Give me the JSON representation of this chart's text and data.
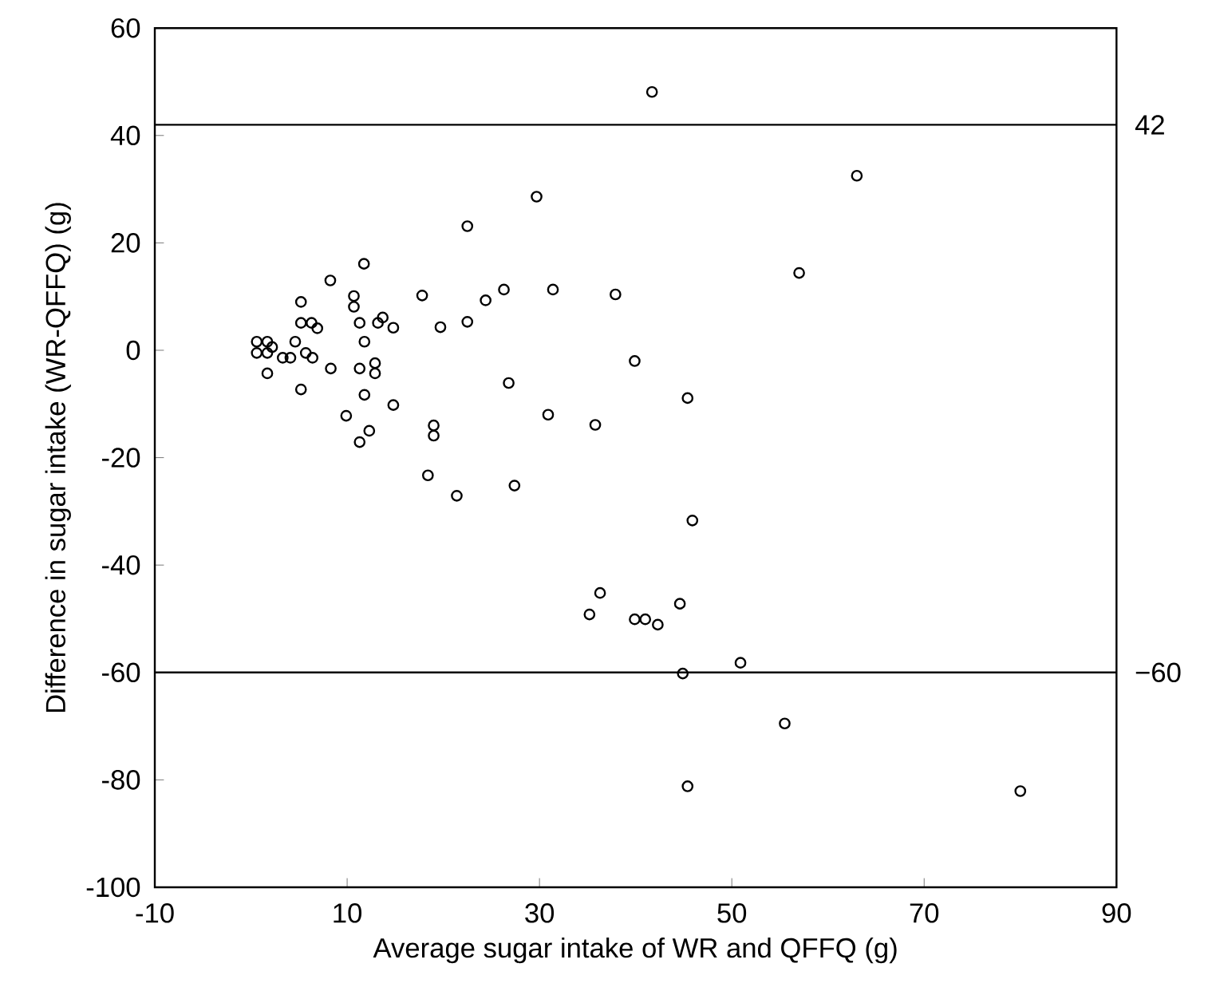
{
  "chart_data": {
    "type": "scatter",
    "xlabel": "Average sugar intake of WR and QFFQ (g)",
    "ylabel": "Difference in sugar intake (WR-QFFQ) (g)",
    "xlim": [
      -10,
      90
    ],
    "ylim": [
      -100,
      60
    ],
    "xticks": [
      -10,
      10,
      30,
      50,
      70,
      90
    ],
    "yticks": [
      -100,
      -80,
      -60,
      -40,
      -20,
      0,
      20,
      40,
      60
    ],
    "grid": false,
    "marker": "circle",
    "ref_lines": [
      {
        "axis": "y",
        "value": 42,
        "label": "42",
        "color": "#000000"
      },
      {
        "axis": "y",
        "value": -60,
        "label": "−60",
        "color": "#000000"
      }
    ],
    "series": [
      {
        "color": "#000000",
        "x": [
          22.5,
          11.75,
          8.25,
          5.2,
          10.7,
          10.7,
          17.8,
          24.4,
          26.3,
          29.7,
          31.4,
          37.9,
          41.7,
          63.0,
          57.0,
          39.9,
          26.8,
          45.4,
          30.9,
          35.8,
          27.4,
          45.9,
          5.2,
          6.3,
          6.9,
          0.6,
          1.7,
          0.6,
          1.7,
          2.2,
          3.3,
          4.1,
          4.6,
          5.7,
          6.4,
          1.7,
          5.2,
          8.3,
          11.3,
          11.8,
          13.2,
          13.7,
          14.8,
          11.3,
          12.9,
          12.9,
          11.8,
          14.8,
          9.9,
          12.3,
          11.3,
          19.0,
          19.0,
          19.7,
          22.5,
          18.4,
          21.4,
          36.3,
          35.2,
          39.9,
          41.0,
          42.3,
          44.6,
          44.9,
          50.9,
          55.5,
          45.4,
          80.0
        ],
        "values": [
          23.1,
          16.1,
          13.0,
          9.0,
          10.1,
          8.1,
          10.2,
          9.3,
          11.3,
          28.6,
          11.3,
          10.4,
          48.1,
          32.5,
          14.4,
          -2.0,
          -6.1,
          -8.9,
          -12.0,
          -13.9,
          -25.2,
          -31.7,
          5.1,
          5.1,
          4.1,
          1.6,
          1.6,
          -0.5,
          -0.5,
          0.6,
          -1.4,
          -1.4,
          1.6,
          -0.5,
          -1.4,
          -4.3,
          -7.3,
          -3.4,
          5.1,
          1.6,
          5.1,
          6.1,
          4.2,
          -3.4,
          -2.4,
          -4.3,
          -8.3,
          -10.2,
          -12.2,
          -15.0,
          -17.1,
          -14.0,
          -15.9,
          4.3,
          5.3,
          -23.3,
          -27.1,
          -45.2,
          -49.2,
          -50.1,
          -50.1,
          -51.1,
          -47.2,
          -60.2,
          -58.2,
          -69.5,
          -81.2,
          -82.1
        ]
      }
    ]
  }
}
